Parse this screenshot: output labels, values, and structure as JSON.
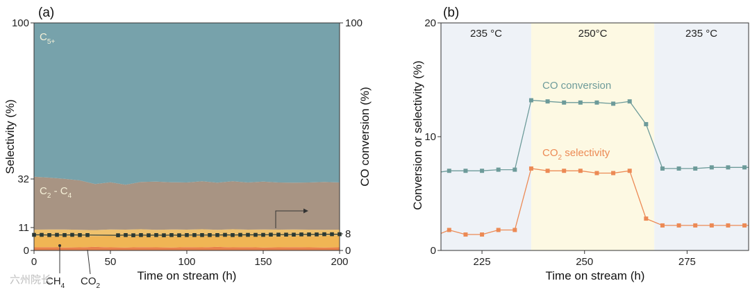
{
  "chart_data": [
    {
      "panel_label": "(a)",
      "type": "area",
      "xlabel": "Time on stream (h)",
      "ylabel": "Selectivity (%)",
      "y2label": "CO conversion (%)",
      "xlim": [
        0,
        200
      ],
      "ylim": [
        0,
        100
      ],
      "x_ticks": [
        "0",
        "50",
        "100",
        "150",
        "200"
      ],
      "y_ticks": [
        "0",
        "11",
        "32",
        "100"
      ],
      "y2_ticks": [
        "0",
        "8",
        "100"
      ],
      "stack_x": [
        0,
        10,
        20,
        30,
        40,
        50,
        60,
        70,
        80,
        90,
        100,
        110,
        120,
        130,
        140,
        150,
        160,
        170,
        180,
        190,
        200
      ],
      "stack_series": [
        {
          "name": "CO2",
          "label": "CO",
          "label_sub": "2",
          "color": "#e8814b",
          "values": [
            1.5,
            1.6,
            1.4,
            1.5,
            1.7,
            1.5,
            1.4,
            1.6,
            1.5,
            1.4,
            1.6,
            1.5,
            1.7,
            1.5,
            1.6,
            1.4,
            1.5,
            1.6,
            1.5,
            1.4,
            1.5
          ]
        },
        {
          "name": "CH4",
          "label": "CH",
          "label_sub": "4",
          "color": "#f0b554",
          "values": [
            5.5,
            5.3,
            5.6,
            5.4,
            5.2,
            5.5,
            5.4,
            5.6,
            5.3,
            5.5,
            5.4,
            5.6,
            5.3,
            5.5,
            5.4,
            5.6,
            5.3,
            5.5,
            5.4,
            5.6,
            5.5
          ]
        },
        {
          "name": "C2-C4 light",
          "color": "#efc26e",
          "values": [
            3.0,
            3.2,
            3.1,
            3.0,
            2.9,
            3.1,
            3.2,
            3.0,
            3.1,
            3.2,
            3.0,
            3.1,
            2.9,
            3.2,
            3.0,
            3.1,
            3.2,
            3.0,
            3.1,
            2.9,
            3.0
          ]
        },
        {
          "name": "C2-C4",
          "label": "C",
          "label_sub": "2",
          "label_tail": " - C",
          "label_sub2": "4",
          "color": "#a89483",
          "values": [
            23.0,
            22.5,
            22.0,
            21.5,
            20.0,
            20.5,
            19.5,
            20.5,
            21.0,
            20.5,
            20.5,
            20.8,
            20.5,
            20.8,
            20.5,
            20.8,
            20.5,
            20.3,
            20.5,
            20.8,
            20.5
          ]
        },
        {
          "name": "C5+",
          "label": "C",
          "label_sub": "5+",
          "color": "#77a2ab",
          "values": [
            67.0,
            67.4,
            67.9,
            68.6,
            70.2,
            69.4,
            70.5,
            69.3,
            69.1,
            69.5,
            69.5,
            69.0,
            69.6,
            69.0,
            69.5,
            69.1,
            69.5,
            69.6,
            69.5,
            69.3,
            69.5
          ]
        }
      ],
      "co_conversion": {
        "name": "CO conversion",
        "color": "#2b3a35",
        "x": [
          0,
          5,
          10,
          15,
          20,
          25,
          30,
          35,
          55,
          60,
          65,
          70,
          75,
          80,
          85,
          90,
          95,
          100,
          105,
          110,
          115,
          120,
          125,
          130,
          135,
          140,
          145,
          150,
          155,
          160,
          165,
          170,
          175,
          180,
          185,
          190,
          195,
          200
        ],
        "values": [
          7.5,
          7.5,
          7.4,
          7.5,
          7.4,
          7.5,
          7.4,
          7.4,
          7.3,
          7.4,
          7.3,
          7.4,
          7.3,
          7.4,
          7.3,
          7.4,
          7.3,
          7.4,
          7.4,
          7.4,
          7.4,
          7.4,
          7.5,
          7.4,
          7.5,
          7.5,
          7.5,
          7.5,
          7.6,
          7.6,
          7.6,
          7.6,
          7.7,
          7.7,
          7.7,
          7.8,
          7.8,
          7.8
        ]
      }
    },
    {
      "panel_label": "(b)",
      "type": "line",
      "xlabel": "Time on stream (h)",
      "ylabel": "Conversion or selectivity (%)",
      "xlim": [
        215,
        290
      ],
      "ylim": [
        0,
        20
      ],
      "x_ticks": [
        "225",
        "250",
        "275"
      ],
      "y_ticks": [
        "0",
        "10",
        "20"
      ],
      "regions": [
        {
          "label": "235 °C",
          "from": 215,
          "to": 237,
          "color": "#eef2f7"
        },
        {
          "label": "250°C",
          "from": 237,
          "to": 267,
          "color": "#fdf9e3"
        },
        {
          "label": "235 °C",
          "from": 267,
          "to": 290,
          "color": "#eef2f7"
        }
      ],
      "series": [
        {
          "name": "CO conversion",
          "label": "CO conversion",
          "color": "#6d9b9a",
          "x": [
            215,
            217,
            221,
            225,
            229,
            233,
            237,
            241,
            245,
            249,
            253,
            257,
            261,
            265,
            269,
            273,
            277,
            281,
            285,
            289,
            290
          ],
          "values": [
            6.9,
            7.0,
            7.0,
            7.0,
            7.1,
            7.1,
            13.2,
            13.1,
            13.0,
            13.0,
            13.0,
            12.9,
            13.1,
            11.1,
            7.2,
            7.2,
            7.2,
            7.3,
            7.3,
            7.3,
            7.3
          ]
        },
        {
          "name": "CO2 selectivity",
          "label": "CO",
          "label_sub": "2",
          "label_tail": " selectivity",
          "color": "#ec8a55",
          "x": [
            215,
            217,
            221,
            225,
            229,
            233,
            237,
            241,
            245,
            249,
            253,
            257,
            261,
            265,
            269,
            273,
            277,
            281,
            285,
            289,
            290
          ],
          "values": [
            1.5,
            1.8,
            1.4,
            1.4,
            1.8,
            1.8,
            7.2,
            7.0,
            7.0,
            7.0,
            6.8,
            6.8,
            7.0,
            2.8,
            2.2,
            2.2,
            2.2,
            2.2,
            2.2,
            2.2,
            2.2
          ]
        }
      ]
    }
  ],
  "watermark": "六州院长",
  "co_label_a": "CO",
  "co_label_a_sub": "2",
  "ch_label_a": "CH",
  "ch_label_a_sub": "4"
}
